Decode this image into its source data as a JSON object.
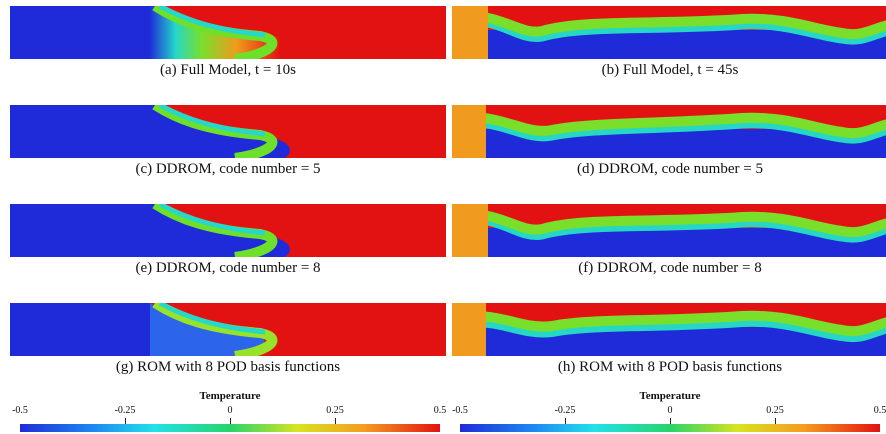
{
  "panels": [
    {
      "caption": "(a)  Full Model, t = 10s"
    },
    {
      "caption": "(b)  Full Model, t = 45s"
    },
    {
      "caption": "(c)  DDROM, code number = 5"
    },
    {
      "caption": "(d)  DDROM, code number = 5"
    },
    {
      "caption": "(e)  DDROM, code number = 8"
    },
    {
      "caption": "(f)  DDROM, code number = 8"
    },
    {
      "caption": "(g)  ROM with 8 POD basis functions"
    },
    {
      "caption": "(h)  ROM with 8 POD basis functions"
    }
  ],
  "colorbars": [
    {
      "title": "Temperature",
      "ticks": [
        "-0.5",
        "-0.25",
        "0",
        "0.25",
        "0.5"
      ]
    },
    {
      "title": "Temperature",
      "ticks": [
        "-0.5",
        "-0.25",
        "0",
        "0.25",
        "0.5"
      ]
    }
  ],
  "colors": {
    "cold": "#1f2bd9",
    "mid": "#27d46a",
    "hot": "#e31212"
  }
}
